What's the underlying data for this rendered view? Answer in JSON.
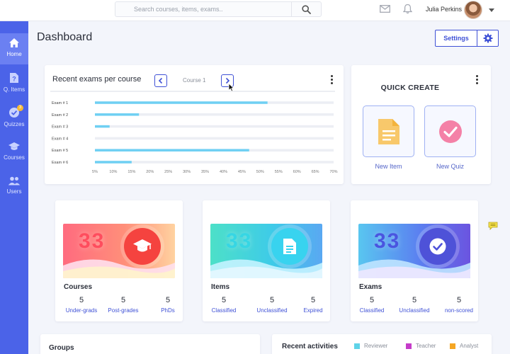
{
  "header": {
    "search_placeholder": "Search courses, items, exams..",
    "user_name": "Julia Perkins"
  },
  "sidebar": {
    "items": [
      {
        "label": "Home",
        "icon": "home-icon",
        "active": true
      },
      {
        "label": "Q. Items",
        "icon": "question-file-icon",
        "active": false
      },
      {
        "label": "Quizzes",
        "icon": "quiz-check-icon",
        "active": false,
        "badge": "3"
      },
      {
        "label": "Courses",
        "icon": "graduation-cap-icon",
        "active": false
      },
      {
        "label": "Users",
        "icon": "users-icon",
        "active": false
      }
    ]
  },
  "page": {
    "title": "Dashboard",
    "settings_label": "Settings"
  },
  "exams_card": {
    "title": "Recent exams per course",
    "course_label": "Course 1"
  },
  "chart_data": {
    "type": "bar",
    "orientation": "horizontal",
    "categories": [
      "Exam # 1",
      "Exam # 2",
      "Exam # 3",
      "Exam # 4",
      "Exam # 5",
      "Exam # 6"
    ],
    "values": [
      52,
      17,
      9,
      5,
      47,
      15
    ],
    "xlim": [
      5,
      70
    ],
    "xticks": [
      "5%",
      "10%",
      "15%",
      "20%",
      "25%",
      "30%",
      "35%",
      "40%",
      "45%",
      "50%",
      "55%",
      "60%",
      "65%",
      "70%"
    ],
    "bar_color": "#6fd0f3",
    "track_color": "#eceef4"
  },
  "quick_create": {
    "title": "QUICK CREATE",
    "items": [
      {
        "label": "New Item",
        "icon": "document-icon"
      },
      {
        "label": "New Quiz",
        "icon": "check-circle-icon"
      }
    ]
  },
  "stats": [
    {
      "title": "Courses",
      "number": "33",
      "icon": "graduation-cap-icon",
      "metrics": [
        {
          "value": "5",
          "label": "Under-grads"
        },
        {
          "value": "5",
          "label": "Post-grades"
        },
        {
          "value": "5",
          "label": "PhDs"
        }
      ]
    },
    {
      "title": "Items",
      "number": "33",
      "icon": "document-icon",
      "metrics": [
        {
          "value": "5",
          "label": "Classified"
        },
        {
          "value": "5",
          "label": "Unclassified"
        },
        {
          "value": "5",
          "label": "Expired"
        }
      ]
    },
    {
      "title": "Exams",
      "number": "33",
      "icon": "check-circle-icon",
      "metrics": [
        {
          "value": "5",
          "label": "Classified"
        },
        {
          "value": "5",
          "label": "Unclassified"
        },
        {
          "value": "5",
          "label": "non-scored"
        }
      ]
    }
  ],
  "groups": {
    "title": "Groups"
  },
  "activities": {
    "title": "Recent activities",
    "legend": [
      {
        "label": "Reviewer",
        "color": "#5fd3e8"
      },
      {
        "label": "Teacher",
        "color": "#c53cc9"
      },
      {
        "label": "Analyst",
        "color": "#f5a623"
      }
    ]
  },
  "colors": {
    "primary": "#3f51d6",
    "sidebar": "#4b63e8",
    "accent_link": "#3f51d6"
  }
}
